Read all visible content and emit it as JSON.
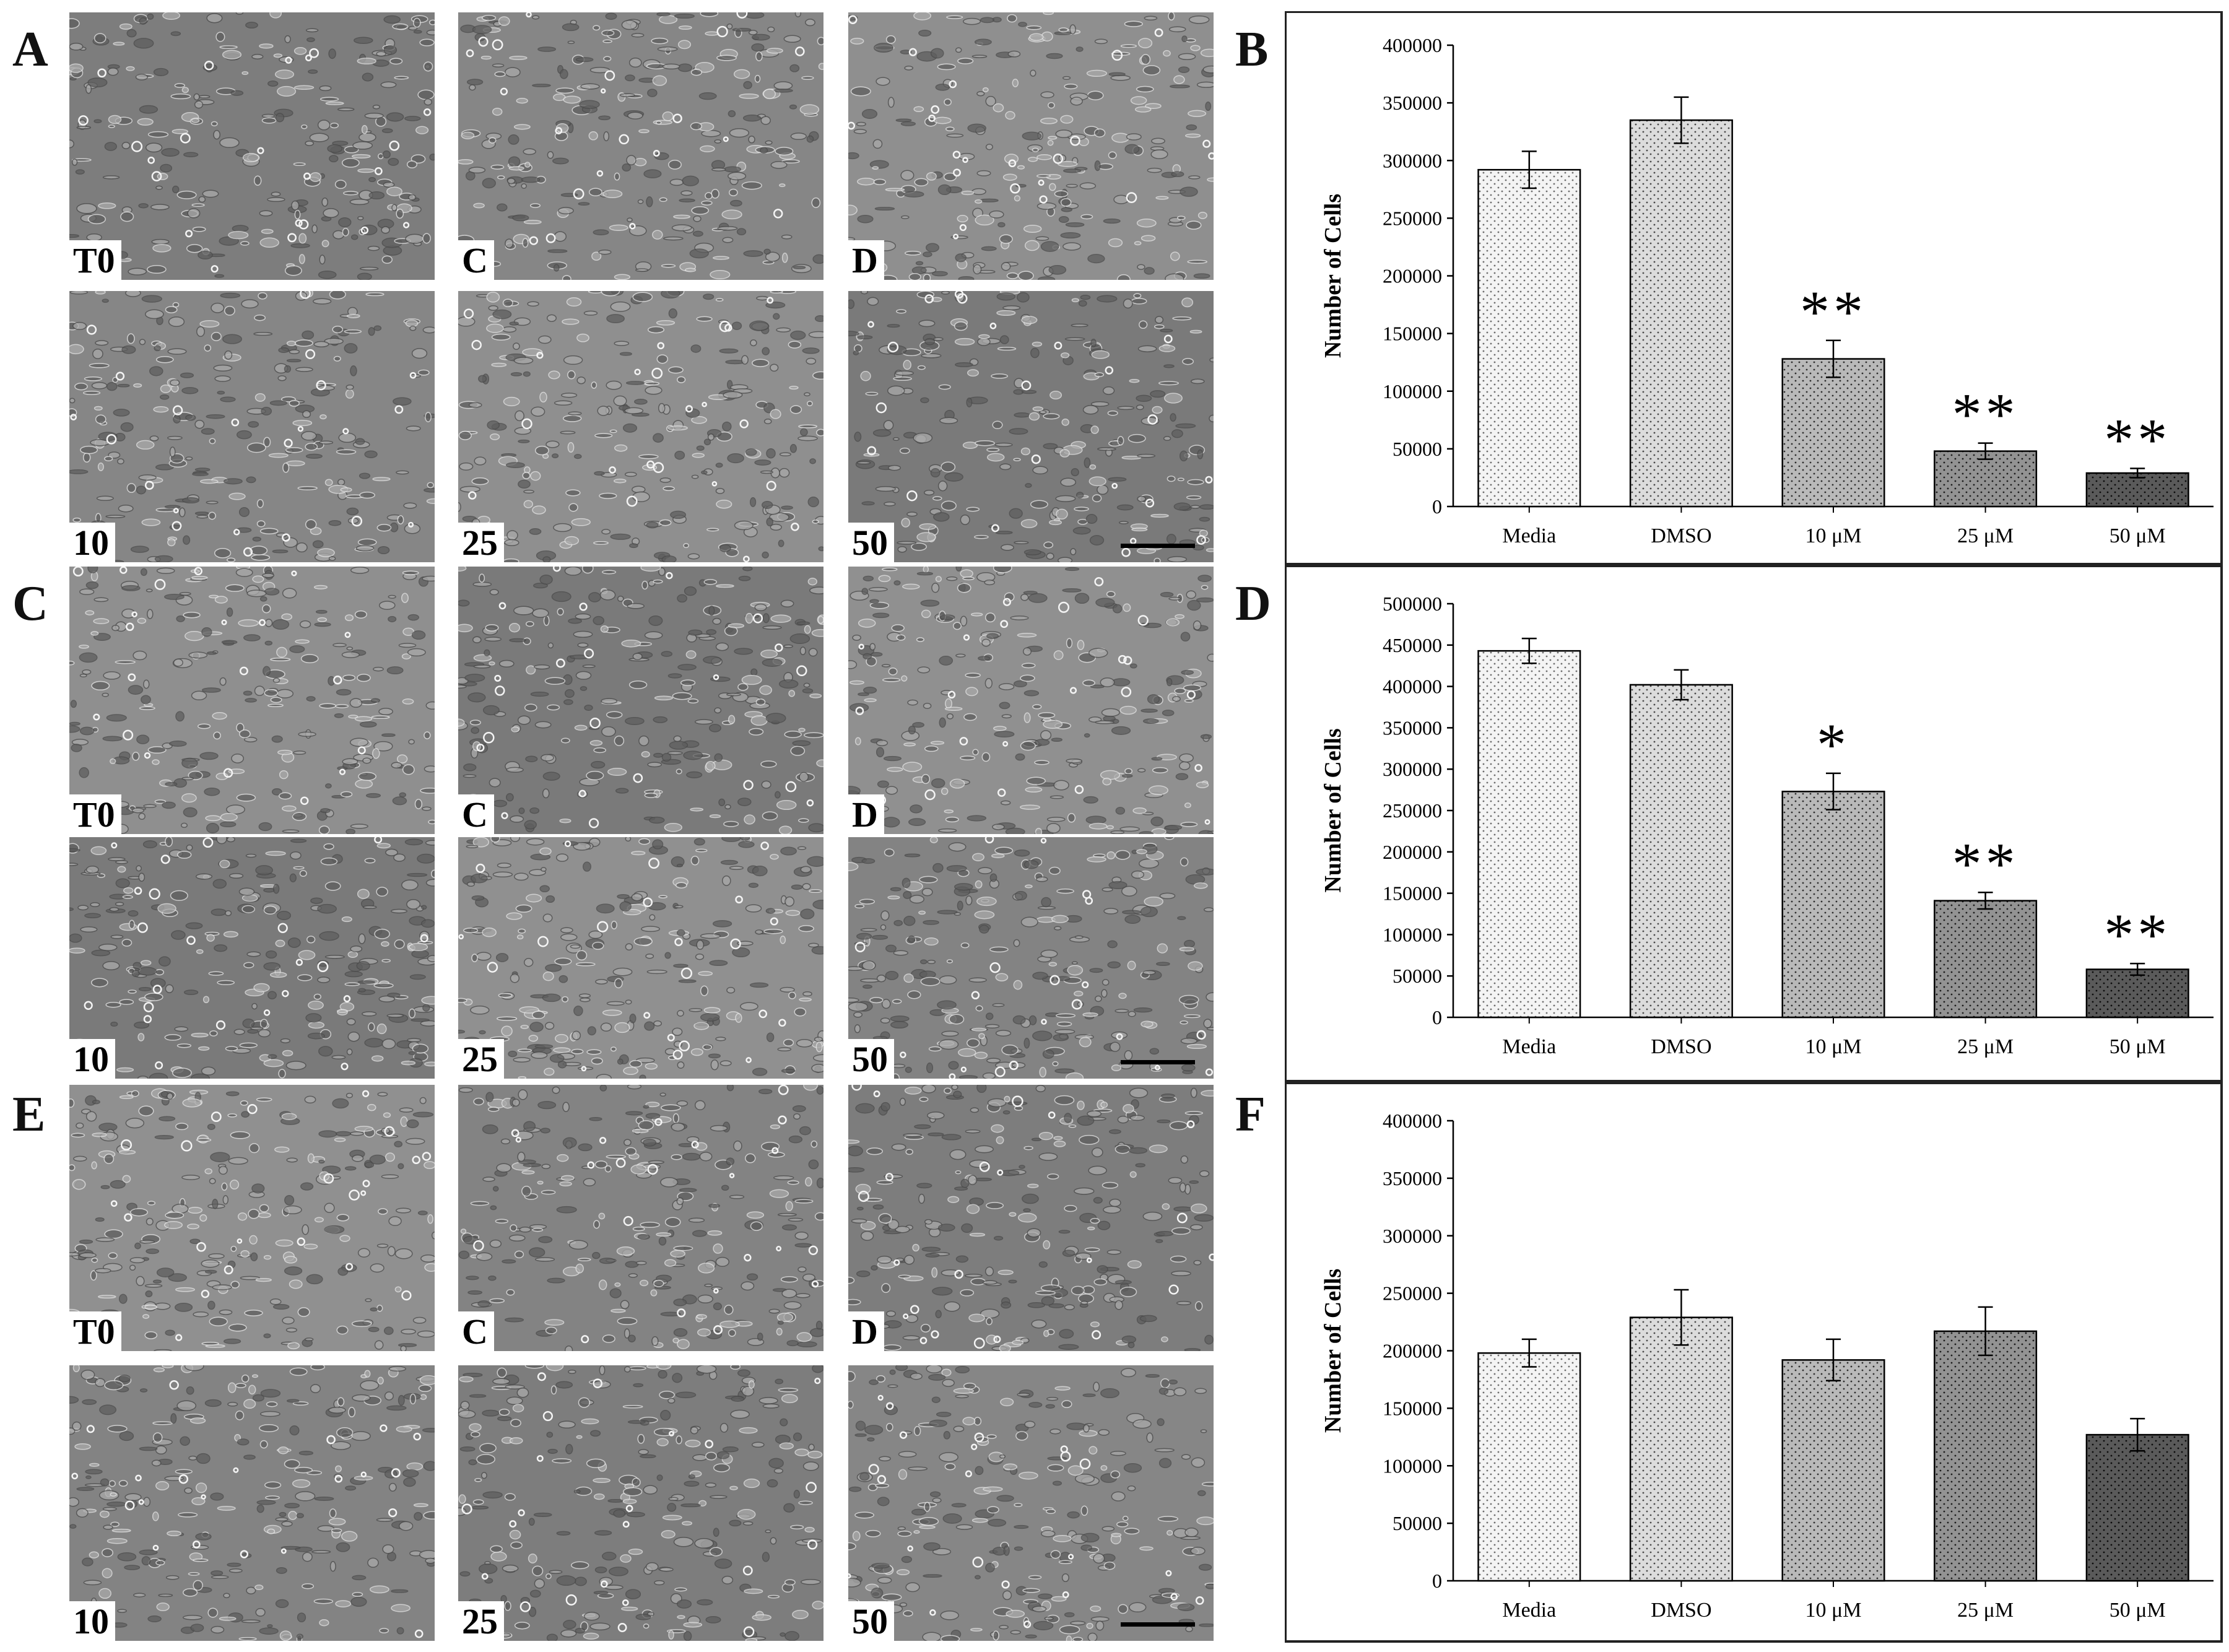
{
  "panels": {
    "A": "A",
    "B": "B",
    "C": "C",
    "D": "D",
    "E": "E",
    "F": "F"
  },
  "micrograph_labels": [
    "T0",
    "C",
    "D",
    "10",
    "25",
    "50"
  ],
  "chart_data": [
    {
      "panel": "B",
      "type": "bar",
      "ylabel": "Number of Cells",
      "ylim": [
        0,
        400000
      ],
      "yticks": [
        0,
        50000,
        100000,
        150000,
        200000,
        250000,
        300000,
        350000,
        400000
      ],
      "categories": [
        "Media",
        "DMSO",
        "10 μM",
        "25 μM",
        "50 μM"
      ],
      "values": [
        292000,
        335000,
        128000,
        48000,
        29000
      ],
      "errors": [
        16000,
        20000,
        16000,
        7000,
        4000
      ],
      "significance": [
        "",
        "",
        "**",
        "**",
        "**"
      ],
      "grid": false
    },
    {
      "panel": "D",
      "type": "bar",
      "ylabel": "Number of Cells",
      "ylim": [
        0,
        500000
      ],
      "yticks": [
        0,
        50000,
        100000,
        150000,
        200000,
        250000,
        300000,
        350000,
        400000,
        450000,
        500000
      ],
      "categories": [
        "Media",
        "DMSO",
        "10 μM",
        "25 μM",
        "50 μM"
      ],
      "values": [
        443000,
        402000,
        273000,
        141000,
        58000
      ],
      "errors": [
        15000,
        18000,
        22000,
        10000,
        7000
      ],
      "significance": [
        "",
        "",
        "*",
        "**",
        "**"
      ],
      "grid": false
    },
    {
      "panel": "F",
      "type": "bar",
      "ylabel": "Number of Cells",
      "ylim": [
        0,
        400000
      ],
      "yticks": [
        0,
        50000,
        100000,
        150000,
        200000,
        250000,
        300000,
        350000,
        400000
      ],
      "categories": [
        "Media",
        "DMSO",
        "10 μM",
        "25 μM",
        "50 μM"
      ],
      "values": [
        198000,
        229000,
        192000,
        217000,
        127000
      ],
      "errors": [
        12000,
        24000,
        18000,
        21000,
        14000
      ],
      "significance": [
        "",
        "",
        "",
        "",
        ""
      ],
      "grid": false
    }
  ]
}
